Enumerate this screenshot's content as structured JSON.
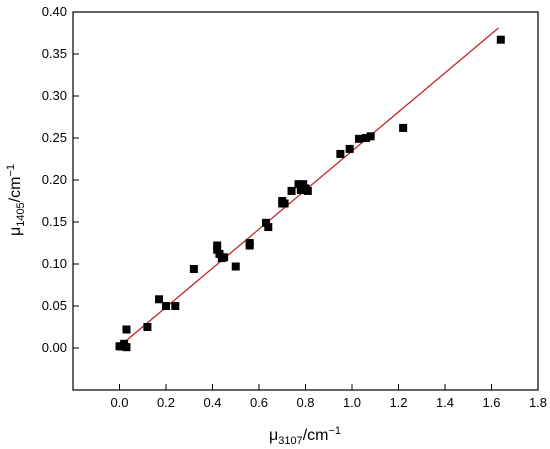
{
  "chart_data": {
    "type": "scatter",
    "xlabel": {
      "base": "μ",
      "sub": "3107",
      "unit": "/cm",
      "sup": "−1"
    },
    "ylabel": {
      "base": "μ",
      "sub": "1405",
      "unit": "/cm",
      "sup": "−1"
    },
    "xlim": [
      -0.2,
      1.8
    ],
    "ylim": [
      -0.05,
      0.4
    ],
    "xticks": [
      "0.0",
      "0.2",
      "0.4",
      "0.6",
      "0.8",
      "1.0",
      "1.2",
      "1.4",
      "1.6",
      "1.8"
    ],
    "yticks": [
      "0.00",
      "0.05",
      "0.10",
      "0.15",
      "0.20",
      "0.25",
      "0.30",
      "0.35",
      "0.40"
    ],
    "grid": false,
    "marker_color": "#000000",
    "fit_color": "#c0282d",
    "fit_line": {
      "x": [
        0.0,
        1.63
      ],
      "y": [
        0.002,
        0.381
      ]
    },
    "points": [
      {
        "x": 0.0,
        "y": 0.002
      },
      {
        "x": 0.01,
        "y": 0.002
      },
      {
        "x": 0.02,
        "y": 0.005
      },
      {
        "x": 0.03,
        "y": 0.001
      },
      {
        "x": 0.03,
        "y": 0.022
      },
      {
        "x": 0.12,
        "y": 0.025
      },
      {
        "x": 0.17,
        "y": 0.058
      },
      {
        "x": 0.2,
        "y": 0.05
      },
      {
        "x": 0.24,
        "y": 0.05
      },
      {
        "x": 0.32,
        "y": 0.094
      },
      {
        "x": 0.42,
        "y": 0.122
      },
      {
        "x": 0.42,
        "y": 0.117
      },
      {
        "x": 0.43,
        "y": 0.112
      },
      {
        "x": 0.44,
        "y": 0.107
      },
      {
        "x": 0.45,
        "y": 0.108
      },
      {
        "x": 0.5,
        "y": 0.097
      },
      {
        "x": 0.56,
        "y": 0.125
      },
      {
        "x": 0.56,
        "y": 0.122
      },
      {
        "x": 0.63,
        "y": 0.149
      },
      {
        "x": 0.64,
        "y": 0.144
      },
      {
        "x": 0.7,
        "y": 0.172
      },
      {
        "x": 0.7,
        "y": 0.175
      },
      {
        "x": 0.71,
        "y": 0.172
      },
      {
        "x": 0.74,
        "y": 0.187
      },
      {
        "x": 0.77,
        "y": 0.195
      },
      {
        "x": 0.78,
        "y": 0.188
      },
      {
        "x": 0.79,
        "y": 0.195
      },
      {
        "x": 0.8,
        "y": 0.19
      },
      {
        "x": 0.81,
        "y": 0.187
      },
      {
        "x": 0.95,
        "y": 0.231
      },
      {
        "x": 0.99,
        "y": 0.237
      },
      {
        "x": 1.03,
        "y": 0.249
      },
      {
        "x": 1.06,
        "y": 0.25
      },
      {
        "x": 1.08,
        "y": 0.252
      },
      {
        "x": 1.22,
        "y": 0.262
      },
      {
        "x": 1.64,
        "y": 0.367
      }
    ]
  }
}
